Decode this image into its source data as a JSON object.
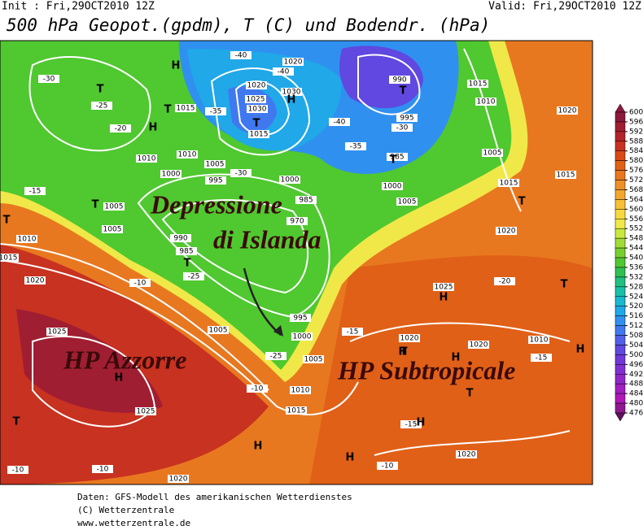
{
  "header": {
    "init": "Init : Fri,29OCT2010 12Z",
    "valid": "Valid: Fri,29OCT2010 12Z",
    "title": "500 hPa Geopot.(gpdm), T (C) und Bodendr. (hPa)"
  },
  "annotations": [
    "Depressione",
    "di Islanda",
    "HP Azzorre",
    "HP Subtropicale"
  ],
  "map": {
    "labels": [
      "-40",
      "1020",
      "-40",
      "1020",
      "1025",
      "1030",
      "1030",
      "1015",
      "-35",
      "1015",
      "-30",
      "-25",
      "-20",
      "1010",
      "1005",
      "1010",
      "1000",
      "995",
      "-30",
      "1000",
      "985",
      "970",
      "990",
      "985",
      "-25",
      "995",
      "1000",
      "1005",
      "-25",
      "1005",
      "1010",
      "1015",
      "-10",
      "990",
      "995",
      "-40",
      "-30",
      "-35",
      "985",
      "1000",
      "1005",
      "1015",
      "1010",
      "1020",
      "1005",
      "1015",
      "1015",
      "1020",
      "1025",
      "-20",
      "1020",
      "1020",
      "1010",
      "-15",
      "-15",
      "1025",
      "1025",
      "-10",
      "1020",
      "-10",
      "-15",
      "1020",
      "-10",
      "1015",
      "1020",
      "1010",
      "-15",
      "1005",
      "1005",
      "-10"
    ],
    "symbols": [
      "T",
      "T",
      "H",
      "H",
      "T",
      "H",
      "T",
      "T",
      "T",
      "T",
      "T",
      "H",
      "H",
      "T",
      "H",
      "T",
      "H",
      "H",
      "H",
      "T",
      "T",
      "H",
      "T",
      "H"
    ]
  },
  "colorbar": {
    "ticks": [
      600,
      596,
      592,
      588,
      584,
      580,
      576,
      572,
      568,
      564,
      560,
      556,
      552,
      548,
      544,
      540,
      536,
      532,
      528,
      524,
      520,
      516,
      512,
      508,
      504,
      500,
      496,
      492,
      488,
      484,
      480,
      476
    ],
    "colors": [
      "#8c1a3c",
      "#a01e32",
      "#b4232a",
      "#c83220",
      "#d84a18",
      "#e06018",
      "#e87820",
      "#ee9028",
      "#f2a830",
      "#f6c038",
      "#f8d840",
      "#f0e848",
      "#c8e840",
      "#a0dc38",
      "#78d030",
      "#50c830",
      "#30c050",
      "#20c080",
      "#18c0a8",
      "#18b8d0",
      "#20a8e8",
      "#3090f0",
      "#4078f0",
      "#5060e8",
      "#6048e0",
      "#7038d8",
      "#8030d0",
      "#9028c8",
      "#a020c0",
      "#b018b8",
      "#901890",
      "#601060"
    ]
  },
  "footer": [
    "Daten: GFS-Modell des amerikanischen Wetterdienstes",
    "(C) Wetterzentrale",
    "www.wetterzentrale.de"
  ]
}
